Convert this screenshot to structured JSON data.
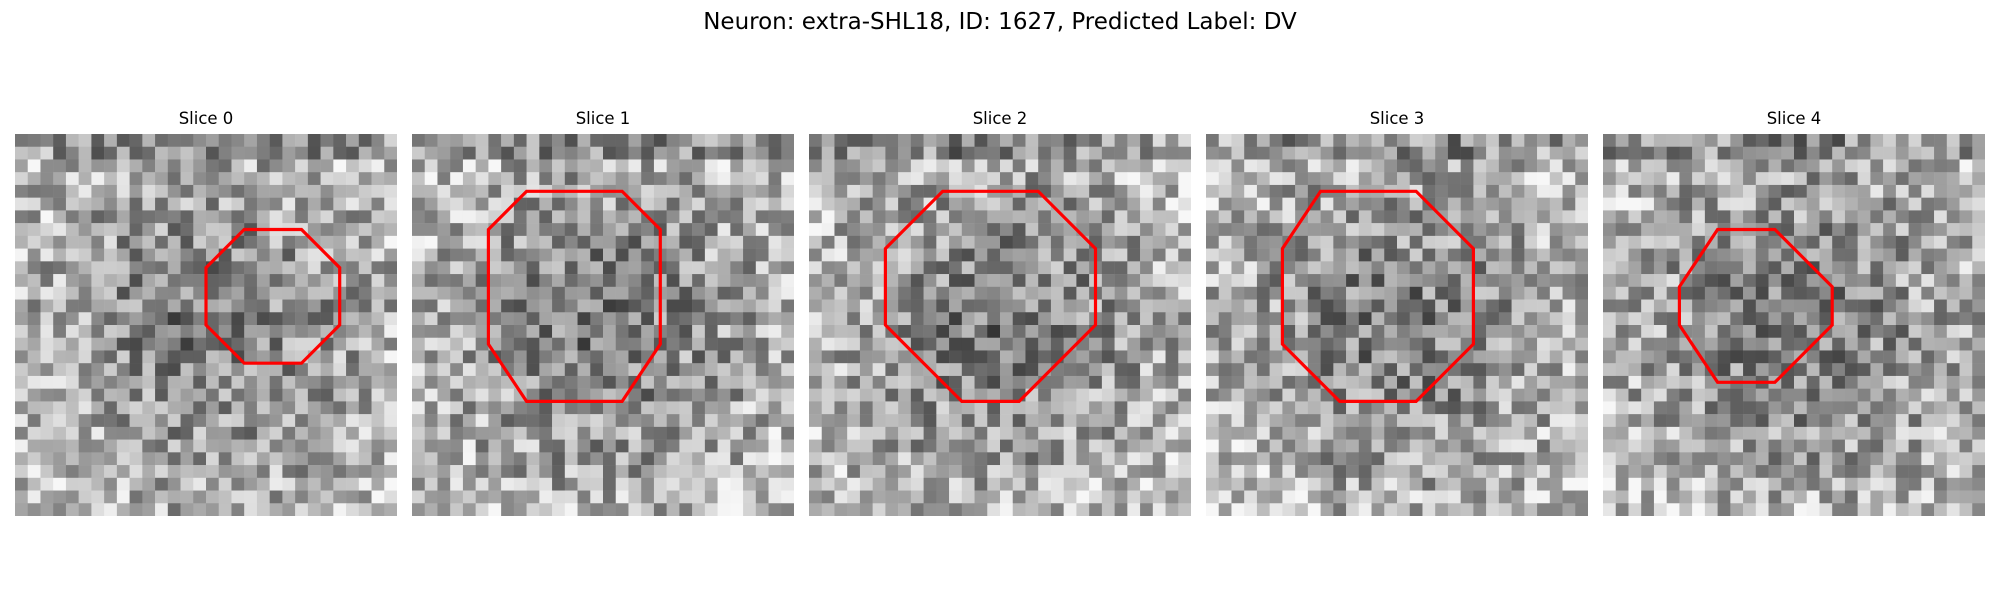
{
  "figure": {
    "title": "Neuron: extra-SHL18, ID: 1627, Predicted Label: DV"
  },
  "slices": [
    {
      "title": "Slice 0",
      "seed": 11,
      "contour": [
        [
          10,
          7
        ],
        [
          12,
          5
        ],
        [
          15,
          5
        ],
        [
          17,
          7
        ],
        [
          17,
          10
        ],
        [
          15,
          12
        ],
        [
          12,
          12
        ],
        [
          10,
          10
        ]
      ]
    },
    {
      "title": "Slice 1",
      "seed": 23,
      "contour": [
        [
          6,
          3
        ],
        [
          11,
          3
        ],
        [
          13,
          5
        ],
        [
          13,
          11
        ],
        [
          11,
          14
        ],
        [
          6,
          14
        ],
        [
          4,
          11
        ],
        [
          4,
          5
        ]
      ]
    },
    {
      "title": "Slice 2",
      "seed": 37,
      "contour": [
        [
          7,
          3
        ],
        [
          12,
          3
        ],
        [
          15,
          6
        ],
        [
          15,
          10
        ],
        [
          11,
          14
        ],
        [
          8,
          14
        ],
        [
          4,
          10
        ],
        [
          4,
          6
        ]
      ]
    },
    {
      "title": "Slice 3",
      "seed": 41,
      "contour": [
        [
          6,
          3
        ],
        [
          11,
          3
        ],
        [
          14,
          6
        ],
        [
          14,
          11
        ],
        [
          11,
          14
        ],
        [
          7,
          14
        ],
        [
          4,
          11
        ],
        [
          4,
          6
        ]
      ]
    },
    {
      "title": "Slice 4",
      "seed": 59,
      "contour": [
        [
          6,
          5
        ],
        [
          9,
          5
        ],
        [
          12,
          8
        ],
        [
          12,
          10
        ],
        [
          9,
          13
        ],
        [
          6,
          13
        ],
        [
          4,
          10
        ],
        [
          4,
          8
        ]
      ]
    }
  ],
  "colors": {
    "contour": "#ff0000",
    "colormap": "gray"
  }
}
